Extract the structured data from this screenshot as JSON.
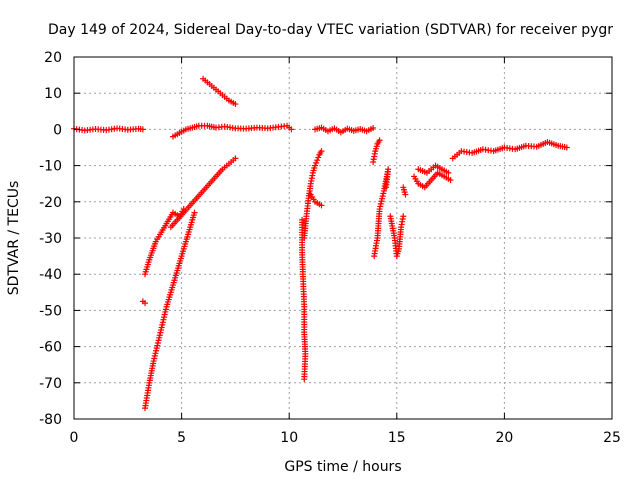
{
  "chart_data": {
    "type": "scatter",
    "title": "Day 149 of 2024, Sidereal Day-to-day VTEC variation (SDTVAR) for receiver pygr",
    "xlabel": "GPS time / hours",
    "ylabel": "SDTVAR / TECUs",
    "xlim": [
      0,
      25
    ],
    "ylim": [
      -80,
      20
    ],
    "xticks": [
      0,
      5,
      10,
      15,
      20,
      25
    ],
    "yticks": [
      -80,
      -70,
      -60,
      -50,
      -40,
      -30,
      -20,
      -10,
      0,
      10,
      20
    ],
    "grid": true,
    "marker": "+",
    "color": "#ff0000",
    "series": [
      {
        "name": "SDTVAR",
        "segments": [
          {
            "x": [
              0.0,
              0.5,
              1.0,
              1.5,
              2.0,
              2.5,
              3.0,
              3.2
            ],
            "y": [
              0.2,
              -0.3,
              0.1,
              -0.2,
              0.3,
              -0.1,
              0.2,
              0.0
            ]
          },
          {
            "x": [
              3.3,
              3.5,
              3.8,
              4.0,
              4.3,
              4.6,
              4.9,
              5.1
            ],
            "y": [
              -40,
              -36,
              -31,
              -29,
              -26,
              -23,
              -24,
              -22
            ]
          },
          {
            "x": [
              4.5,
              4.8,
              5.1,
              5.4,
              5.7,
              6.0,
              6.3,
              6.6,
              6.9,
              7.2,
              7.5
            ],
            "y": [
              -27,
              -25,
              -23,
              -21,
              -19,
              -17,
              -15,
              -13,
              -11,
              -9.5,
              -8
            ]
          },
          {
            "x": [
              3.3,
              3.5,
              3.7,
              3.9,
              4.1,
              4.3,
              4.5,
              4.7,
              4.9,
              5.1,
              5.3,
              5.5,
              5.6
            ],
            "y": [
              -77,
              -70,
              -64,
              -59,
              -54,
              -49,
              -45,
              -41,
              -37,
              -33,
              -29,
              -25,
              -23
            ]
          },
          {
            "x": [
              3.2,
              3.3
            ],
            "y": [
              -47.5,
              -48
            ]
          },
          {
            "x": [
              4.6,
              4.9,
              5.2,
              5.5,
              5.8,
              6.2,
              6.6,
              7.0,
              7.5,
              8.0,
              8.5,
              9.0,
              9.5,
              9.9,
              10.1
            ],
            "y": [
              -2,
              -1,
              0,
              0.5,
              1,
              1,
              0.5,
              0.8,
              0.3,
              0.2,
              0.5,
              0.3,
              0.7,
              1,
              0
            ]
          },
          {
            "x": [
              6.0,
              6.3,
              6.6,
              6.9,
              7.2,
              7.5
            ],
            "y": [
              14,
              12.5,
              11,
              9.5,
              8,
              7
            ]
          },
          {
            "x": [
              10.7,
              10.8,
              10.9,
              11.0,
              11.1,
              11.2,
              11.3,
              11.4,
              11.5
            ],
            "y": [
              -30,
              -24,
              -19,
              -15,
              -12,
              -10,
              -8.5,
              -7,
              -6
            ]
          },
          {
            "x": [
              10.6,
              10.6,
              10.65,
              10.7,
              10.7,
              10.75,
              10.7
            ],
            "y": [
              -25,
              -34,
              -42,
              -49,
              -56,
              -62,
              -69
            ]
          },
          {
            "x": [
              11.0,
              11.2,
              11.5
            ],
            "y": [
              -18,
              -20,
              -21
            ]
          },
          {
            "x": [
              11.2,
              11.5,
              11.8,
              12.1,
              12.4,
              12.7,
              13.0,
              13.3,
              13.6,
              13.9
            ],
            "y": [
              0,
              0.5,
              -0.5,
              0.3,
              -0.8,
              0.2,
              -0.4,
              0.1,
              -0.5,
              0.4
            ]
          },
          {
            "x": [
              13.9,
              14.0,
              14.1,
              14.2
            ],
            "y": [
              -9,
              -6,
              -4,
              -3
            ]
          },
          {
            "x": [
              13.95,
              14.1,
              14.2,
              14.4,
              14.6,
              14.5
            ],
            "y": [
              -35,
              -30,
              -22,
              -17,
              -11,
              -16
            ]
          },
          {
            "x": [
              14.7,
              14.9,
              15.0,
              15.1,
              15.2,
              15.3
            ],
            "y": [
              -24,
              -30,
              -35,
              -33,
              -27,
              -24
            ]
          },
          {
            "x": [
              15.3,
              15.4
            ],
            "y": [
              -16,
              -18
            ]
          },
          {
            "x": [
              15.8,
              16.0,
              16.3,
              16.6,
              16.9,
              17.2,
              17.5
            ],
            "y": [
              -13,
              -15,
              -16,
              -14,
              -12,
              -13,
              -14
            ]
          },
          {
            "x": [
              16.0,
              16.4,
              16.8,
              17.1,
              17.4
            ],
            "y": [
              -11,
              -12,
              -10,
              -11,
              -12
            ]
          },
          {
            "x": [
              17.6,
              18.0,
              18.5,
              19.0,
              19.5,
              20.0,
              20.5,
              21.0,
              21.5,
              22.0,
              22.5,
              22.9
            ],
            "y": [
              -8,
              -6,
              -6.5,
              -5.5,
              -6,
              -5,
              -5.5,
              -4.5,
              -4.8,
              -3.5,
              -4.5,
              -5
            ]
          }
        ]
      }
    ]
  }
}
